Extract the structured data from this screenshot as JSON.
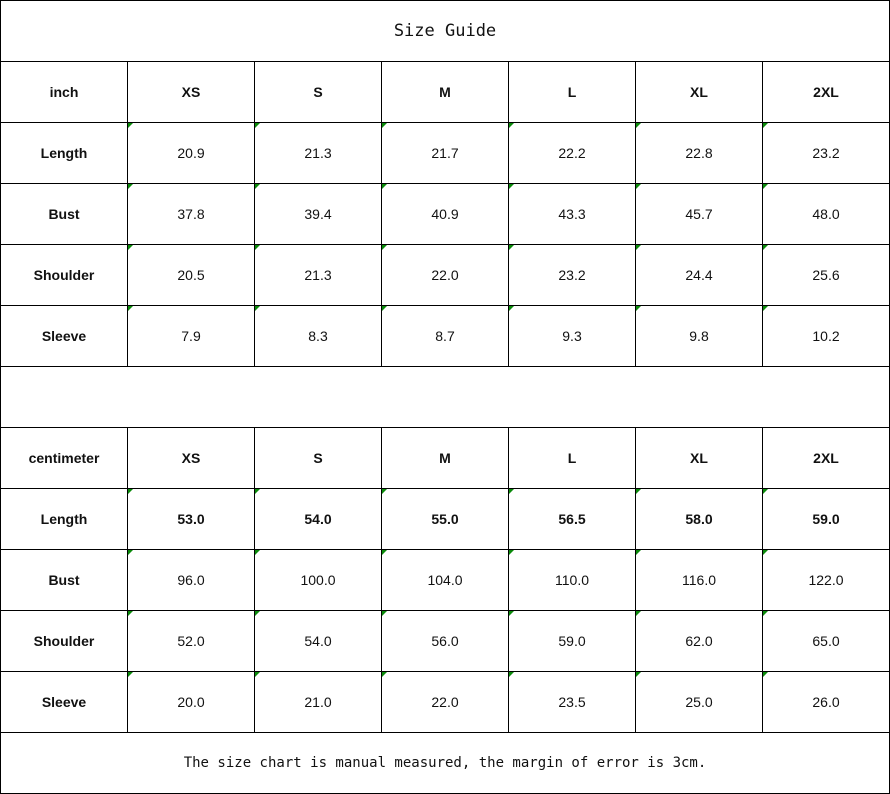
{
  "title": "Size Guide",
  "tables": [
    {
      "unit": "inch",
      "sizes": [
        "XS",
        "S",
        "M",
        "L",
        "XL",
        "2XL"
      ],
      "rows": [
        {
          "label": "Length",
          "values": [
            "20.9",
            "21.3",
            "21.7",
            "22.2",
            "22.8",
            "23.2"
          ]
        },
        {
          "label": "Bust",
          "values": [
            "37.8",
            "39.4",
            "40.9",
            "43.3",
            "45.7",
            "48.0"
          ]
        },
        {
          "label": "Shoulder",
          "values": [
            "20.5",
            "21.3",
            "22.0",
            "23.2",
            "24.4",
            "25.6"
          ]
        },
        {
          "label": "Sleeve",
          "values": [
            "7.9",
            "8.3",
            "8.7",
            "9.3",
            "9.8",
            "10.2"
          ]
        }
      ]
    },
    {
      "unit": "centimeter",
      "sizes": [
        "XS",
        "S",
        "M",
        "L",
        "XL",
        "2XL"
      ],
      "rows": [
        {
          "label": "Length",
          "values": [
            "53.0",
            "54.0",
            "55.0",
            "56.5",
            "58.0",
            "59.0"
          ]
        },
        {
          "label": "Bust",
          "values": [
            "96.0",
            "100.0",
            "104.0",
            "110.0",
            "116.0",
            "122.0"
          ]
        },
        {
          "label": "Shoulder",
          "values": [
            "52.0",
            "54.0",
            "56.0",
            "59.0",
            "62.0",
            "65.0"
          ]
        },
        {
          "label": "Sleeve",
          "values": [
            "20.0",
            "21.0",
            "22.0",
            "23.5",
            "25.0",
            "26.0"
          ]
        }
      ]
    }
  ],
  "note": "The size chart is manual measured, the margin of error is 3cm."
}
